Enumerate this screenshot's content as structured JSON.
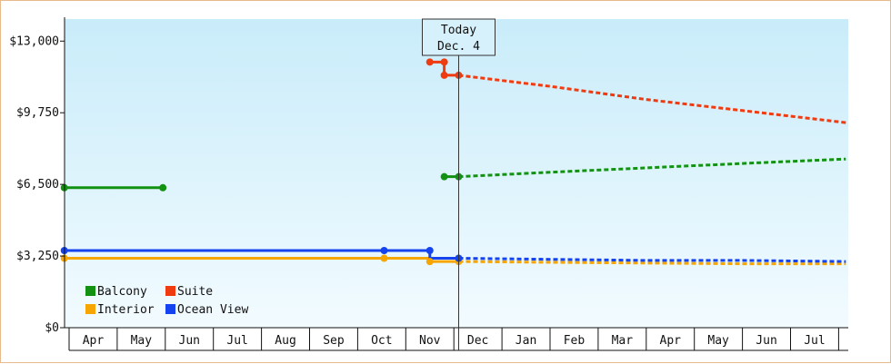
{
  "chart_data": {
    "type": "line",
    "title": "",
    "xlabel": "",
    "ylabel": "",
    "ylim": [
      0,
      14000
    ],
    "yticks": [
      0,
      3250,
      6500,
      9750,
      13000
    ],
    "ytick_labels": [
      "$0",
      "$3,250",
      "$6,500",
      "$9,750",
      "$13,000"
    ],
    "months": [
      "Apr",
      "May",
      "Jun",
      "Jul",
      "Aug",
      "Sep",
      "Oct",
      "Nov",
      "Dec",
      "Jan",
      "Feb",
      "Mar",
      "Apr",
      "May",
      "Jun",
      "Jul"
    ],
    "today": {
      "line1": "Today",
      "line2": "Dec. 4",
      "x": 8.1
    },
    "legend": [
      {
        "name": "Balcony",
        "color": "#129112"
      },
      {
        "name": "Suite",
        "color": "#f03a10"
      },
      {
        "name": "Interior",
        "color": "#f7a500"
      },
      {
        "name": "Ocean View",
        "color": "#1543f0"
      }
    ],
    "series": [
      {
        "name": "Balcony",
        "color": "#129112",
        "historical": [
          [
            -0.1,
            6350
          ],
          [
            1.95,
            6350
          ]
        ],
        "historical_b": [
          [
            7.8,
            6850
          ],
          [
            8.1,
            6850
          ]
        ],
        "forecast": [
          [
            8.1,
            6850
          ],
          [
            10.0,
            7050
          ],
          [
            12.0,
            7250
          ],
          [
            14.0,
            7450
          ],
          [
            16.15,
            7650
          ]
        ]
      },
      {
        "name": "Suite",
        "color": "#f03a10",
        "historical": [
          [
            7.5,
            12050
          ],
          [
            7.8,
            12050
          ],
          [
            7.8,
            11450
          ],
          [
            8.1,
            11450
          ]
        ],
        "forecast": [
          [
            8.1,
            11450
          ],
          [
            10.0,
            10950
          ],
          [
            12.0,
            10350
          ],
          [
            14.0,
            9850
          ],
          [
            16.15,
            9300
          ]
        ]
      },
      {
        "name": "Interior",
        "color": "#f7a500",
        "historical": [
          [
            -0.1,
            3150
          ],
          [
            6.55,
            3150
          ],
          [
            7.5,
            3150
          ],
          [
            7.5,
            3000
          ],
          [
            8.1,
            3000
          ]
        ],
        "forecast": [
          [
            8.1,
            3000
          ],
          [
            11.0,
            2950
          ],
          [
            14.0,
            2900
          ],
          [
            16.15,
            2900
          ]
        ]
      },
      {
        "name": "Ocean View",
        "color": "#1543f0",
        "historical": [
          [
            -0.1,
            3500
          ],
          [
            6.55,
            3500
          ],
          [
            7.5,
            3500
          ],
          [
            7.5,
            3150
          ],
          [
            8.1,
            3150
          ]
        ],
        "forecast": [
          [
            8.1,
            3150
          ],
          [
            10.0,
            3100
          ],
          [
            12.0,
            3050
          ],
          [
            14.0,
            3050
          ],
          [
            16.15,
            3000
          ]
        ]
      }
    ],
    "markers": {
      "Balcony": [
        [
          -0.1,
          6350
        ],
        [
          1.95,
          6350
        ],
        [
          7.8,
          6850
        ],
        [
          8.1,
          6850
        ]
      ],
      "Suite": [
        [
          7.5,
          12050
        ],
        [
          7.8,
          12050
        ],
        [
          7.8,
          11450
        ],
        [
          8.1,
          11450
        ]
      ],
      "Interior": [
        [
          -0.1,
          3150
        ],
        [
          6.55,
          3150
        ],
        [
          7.5,
          3000
        ],
        [
          8.1,
          3000
        ]
      ],
      "Ocean View": [
        [
          -0.1,
          3500
        ],
        [
          6.55,
          3500
        ],
        [
          7.5,
          3500
        ],
        [
          8.1,
          3150
        ]
      ]
    }
  }
}
